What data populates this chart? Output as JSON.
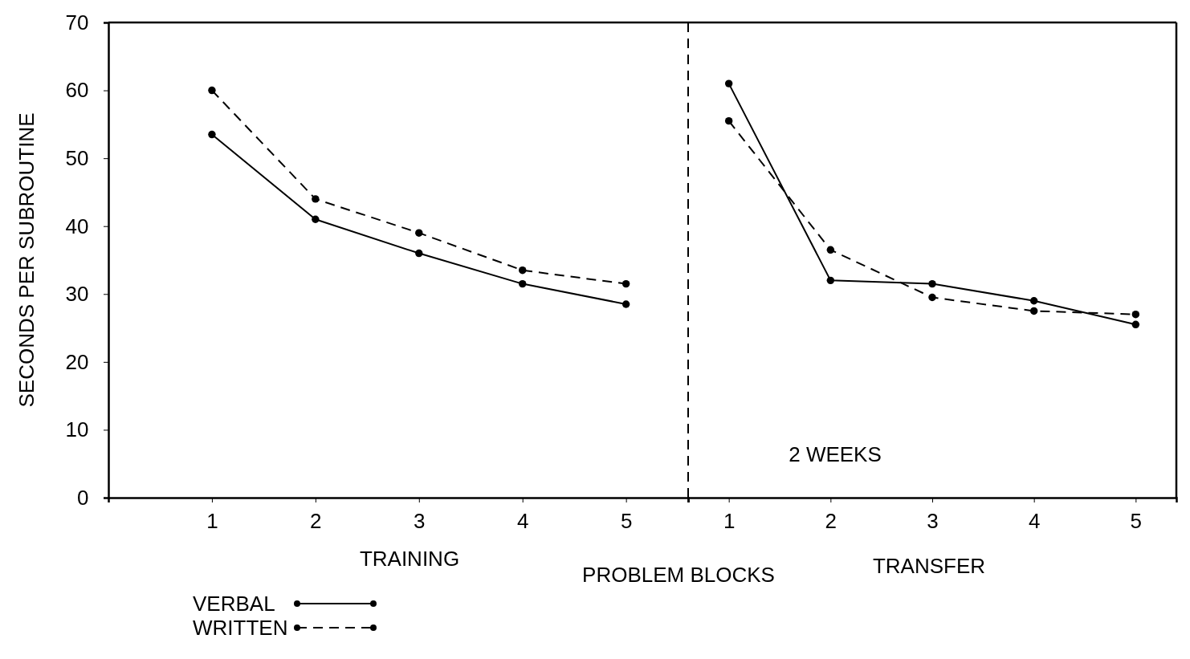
{
  "chart_data": [
    {
      "type": "line",
      "ylabel": "SECONDS PER SUBROUTINE",
      "xlabel": "PROBLEM BLOCKS",
      "annotations": [
        "TRAINING"
      ],
      "xlim": [
        0,
        5.6
      ],
      "xticks": [
        1,
        2,
        3,
        4,
        5
      ],
      "ylim": [
        0,
        70
      ],
      "yticks": [
        0,
        10,
        20,
        30,
        40,
        50,
        60,
        70
      ],
      "series": [
        {
          "name": "VERBAL",
          "color": "#000000",
          "line_style": "solid",
          "x": [
            1,
            2,
            3,
            4,
            5
          ],
          "values": [
            53.5,
            41,
            36,
            31.5,
            28.5
          ]
        },
        {
          "name": "WRITTEN",
          "color": "#000000",
          "line_style": "dashed",
          "x": [
            1,
            2,
            3,
            4,
            5
          ],
          "values": [
            60,
            44,
            39,
            33.5,
            31.5
          ]
        }
      ],
      "marker": "circle",
      "legend": "bottom left"
    },
    {
      "type": "line",
      "annotations": [
        "TRANSFER",
        "2 WEEKS"
      ],
      "xlim": [
        0.6,
        5.4
      ],
      "xticks": [
        1,
        2,
        3,
        4,
        5
      ],
      "ylim": [
        0,
        70
      ],
      "tick_labels": "x",
      "series": [
        {
          "color": "#000000",
          "line_style": "solid",
          "x": [
            1,
            2,
            3,
            4,
            5
          ],
          "values": [
            61,
            32,
            31.5,
            29,
            25.5
          ]
        },
        {
          "color": "#000000",
          "line_style": "dashed",
          "x": [
            1,
            2,
            3,
            4,
            5
          ],
          "values": [
            55.5,
            36.5,
            29.5,
            27.5,
            27
          ]
        }
      ],
      "ref_lines": [
        {
          "axis": "x",
          "value": 0.6,
          "line_style": "dashed",
          "color": "#000000"
        }
      ],
      "marker": "circle"
    }
  ]
}
